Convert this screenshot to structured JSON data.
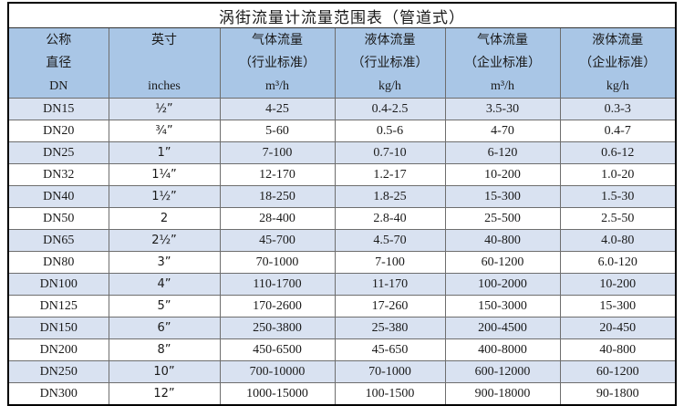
{
  "colors": {
    "header_bg": "#a9c6e6",
    "row_shaded_bg": "#d9e2f1",
    "row_plain_bg": "#ffffff",
    "outer_border": "#000000",
    "grid_line": "#6e6e6e",
    "text": "#1a1a1a"
  },
  "chart_data": {
    "type": "table",
    "title": "涡街流量计流量范围表（管道式）",
    "columns": [
      {
        "key": "dn",
        "lines": [
          "公称",
          "直径",
          "DN"
        ]
      },
      {
        "key": "inches",
        "lines": [
          "英寸",
          "",
          "inches"
        ]
      },
      {
        "key": "gas-industry",
        "lines": [
          "气体流量",
          "（行业标准）",
          "m³/h"
        ]
      },
      {
        "key": "liquid-industry",
        "lines": [
          "液体流量",
          "（行业标准）",
          "kg/h"
        ]
      },
      {
        "key": "gas-enterprise",
        "lines": [
          "气体流量",
          "（企业标准）",
          "m³/h"
        ]
      },
      {
        "key": "liquid-enterprise",
        "lines": [
          "液体流量",
          "（企业标准）",
          "kg/h"
        ]
      }
    ],
    "rows": [
      {
        "cells": [
          "DN15",
          "½”",
          "4-25",
          "0.4-2.5",
          "3.5-30",
          "0.3-3"
        ]
      },
      {
        "cells": [
          "DN20",
          "¾”",
          "5-60",
          "0.5-6",
          "4-70",
          "0.4-7"
        ]
      },
      {
        "cells": [
          "DN25",
          "1”",
          "7-100",
          "0.7-10",
          "6-120",
          "0.6-12"
        ]
      },
      {
        "cells": [
          "DN32",
          "1¼”",
          "12-170",
          "1.2-17",
          "10-200",
          "1.0-20"
        ]
      },
      {
        "cells": [
          "DN40",
          "1½”",
          "18-250",
          "1.8-25",
          "15-300",
          "1.5-30"
        ]
      },
      {
        "cells": [
          "DN50",
          "2",
          "28-400",
          "2.8-40",
          "25-500",
          "2.5-50"
        ]
      },
      {
        "cells": [
          "DN65",
          "2½”",
          "45-700",
          "4.5-70",
          "40-800",
          "4.0-80"
        ]
      },
      {
        "cells": [
          "DN80",
          "3”",
          "70-1000",
          "7-100",
          "60-1200",
          "6.0-120"
        ]
      },
      {
        "cells": [
          "DN100",
          "4”",
          "110-1700",
          "11-170",
          "100-2000",
          "10-200"
        ]
      },
      {
        "cells": [
          "DN125",
          "5”",
          "170-2600",
          "17-260",
          "150-3000",
          "15-300"
        ]
      },
      {
        "cells": [
          "DN150",
          "6”",
          "250-3800",
          "25-380",
          "200-4500",
          "20-450"
        ]
      },
      {
        "cells": [
          "DN200",
          "8”",
          "450-6500",
          "45-650",
          "400-8000",
          "40-800"
        ]
      },
      {
        "cells": [
          "DN250",
          "10”",
          "700-10000",
          "70-1000",
          "600-12000",
          "60-1200"
        ]
      },
      {
        "cells": [
          "DN300",
          "12”",
          "1000-15000",
          "100-1500",
          "900-18000",
          "90-1800"
        ]
      }
    ]
  }
}
